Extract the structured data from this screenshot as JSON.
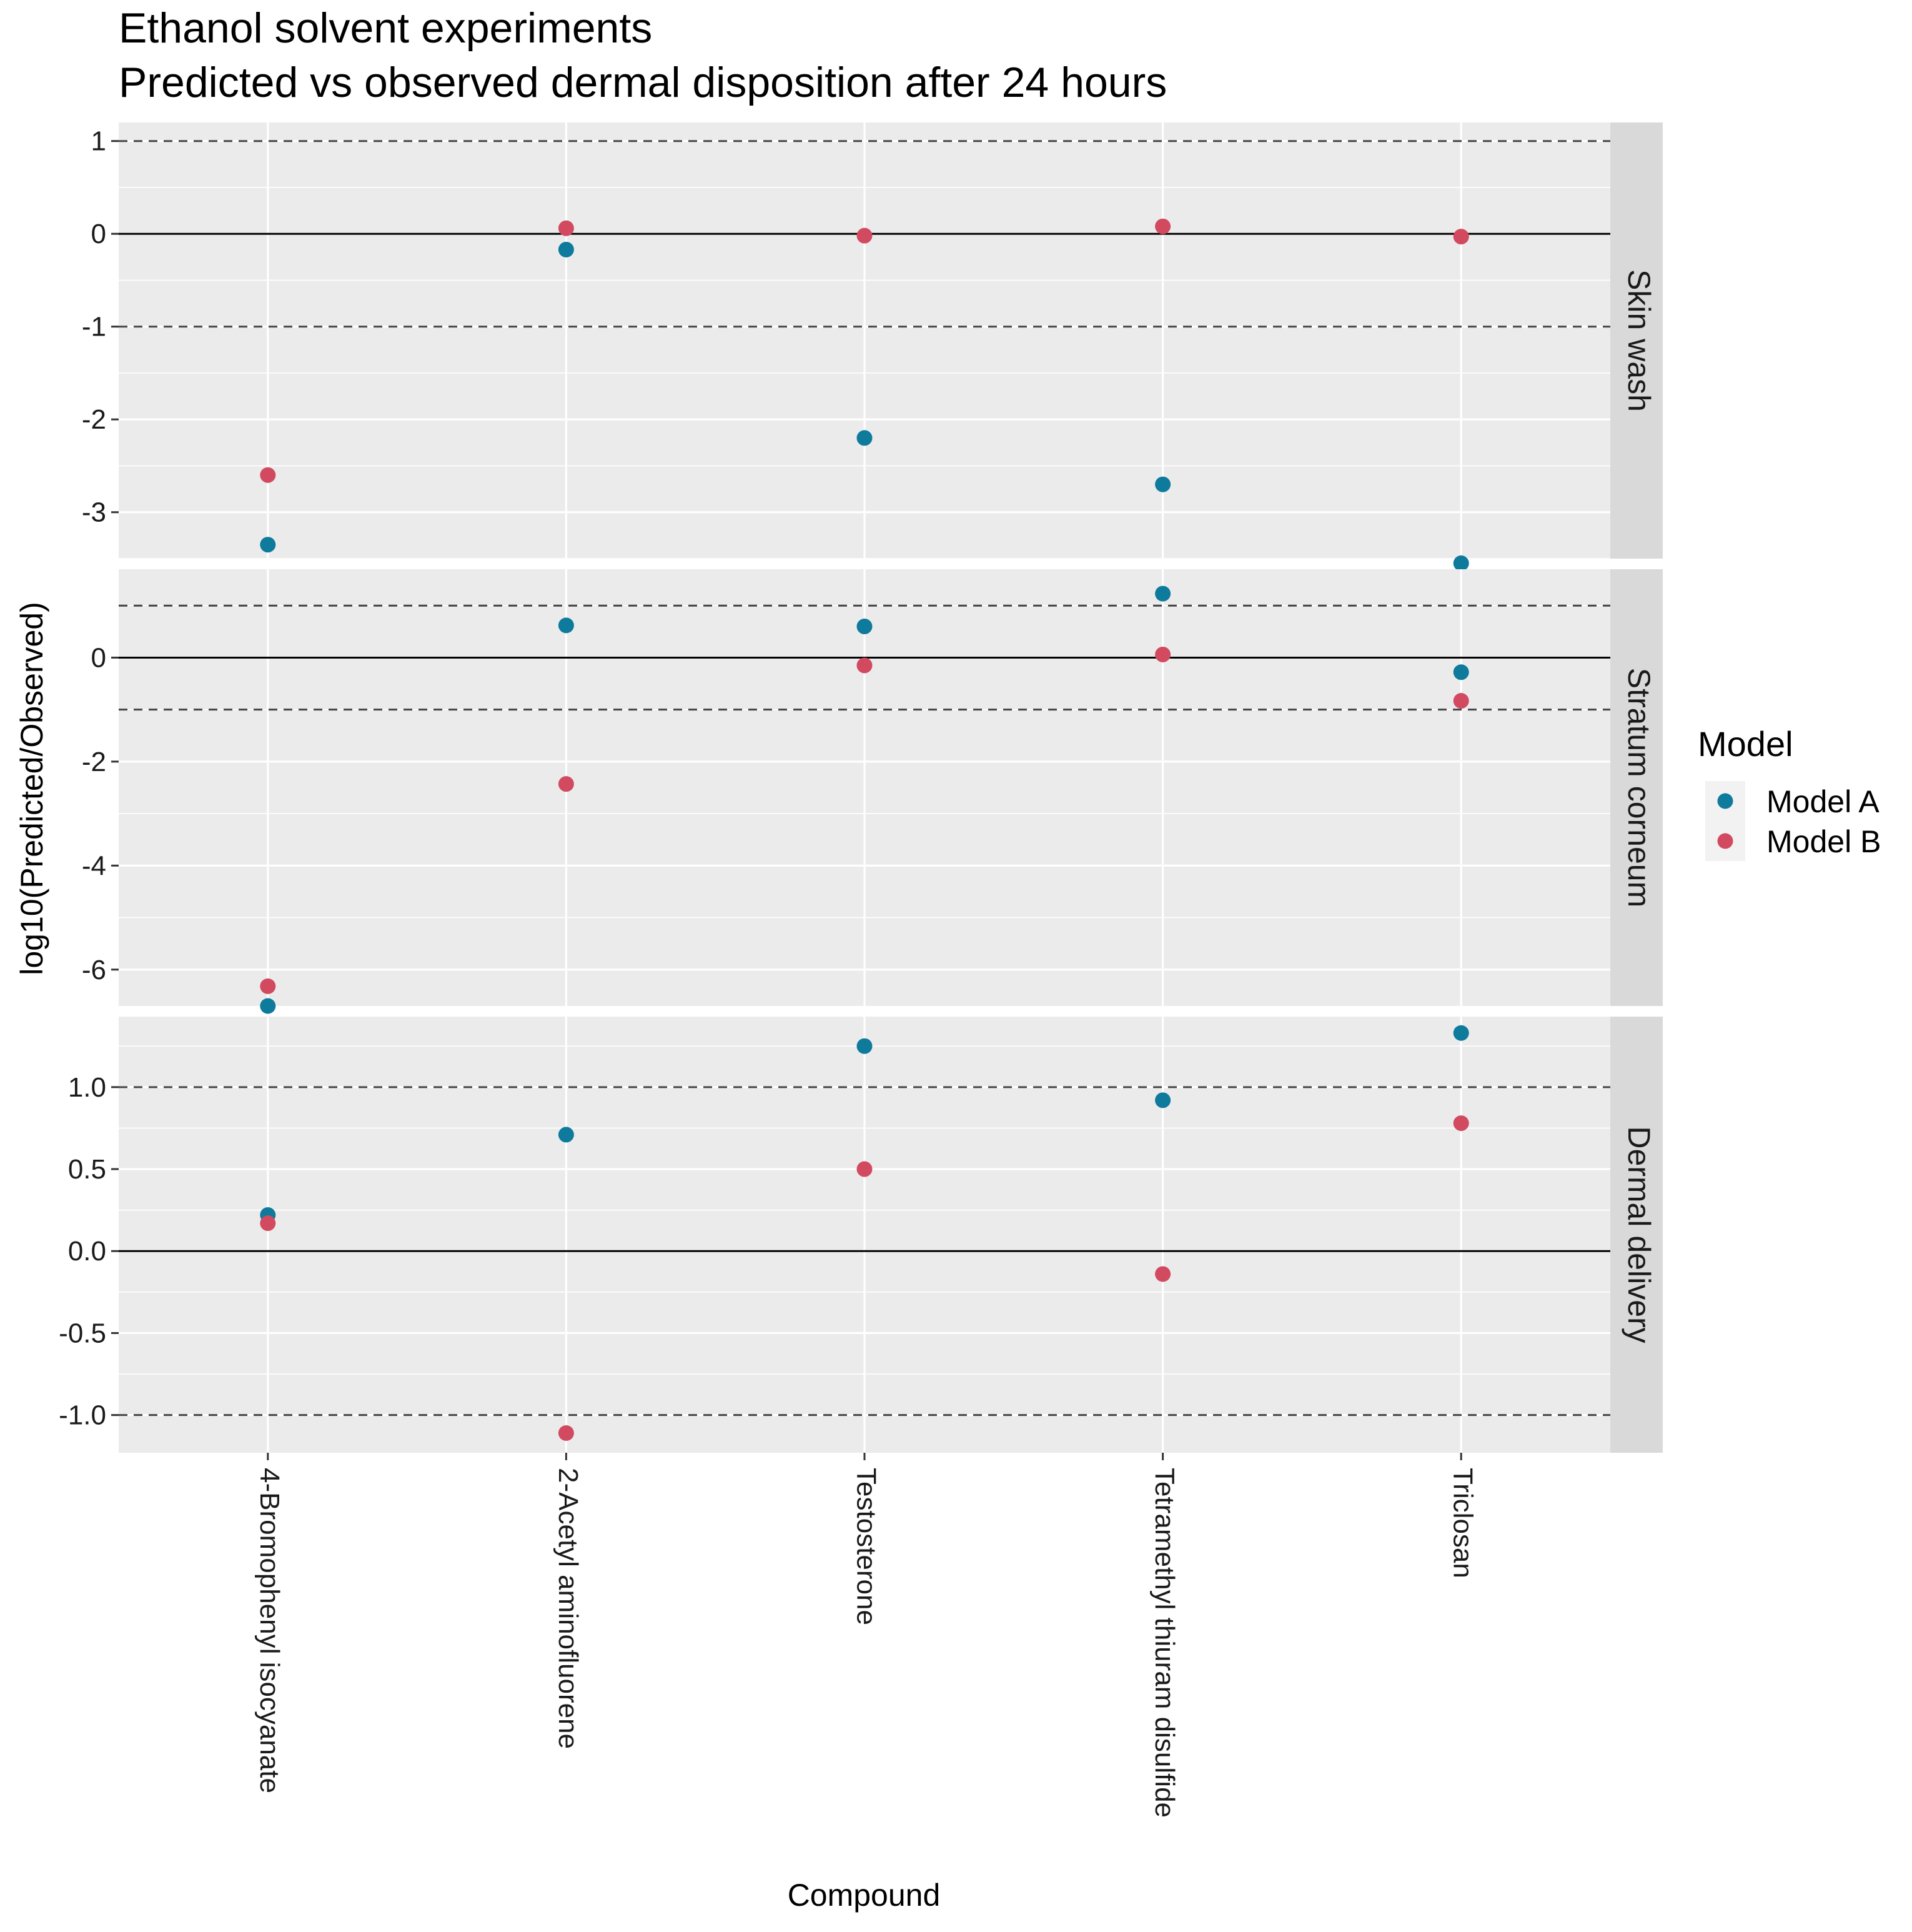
{
  "chart_data": {
    "type": "scatter",
    "title": "Ethanol solvent experiments",
    "subtitle": "Predicted vs observed dermal disposition after 24 hours",
    "xlabel": "Compound",
    "ylabel": "log10(Predicted/Observed)",
    "categories": [
      "4-Bromophenyl isocyanate",
      "2-Acetyl aminofluorene",
      "Testosterone",
      "Tetramethyl thiuram disulfide",
      "Triclosan"
    ],
    "legend": {
      "title": "Model",
      "position": "right",
      "items": [
        {
          "name": "Model A",
          "color": "#0e7a9c"
        },
        {
          "name": "Model B",
          "color": "#d24a5f"
        }
      ]
    },
    "reference_lines": {
      "solid": 0,
      "dashed": [
        -1,
        1
      ]
    },
    "grid": true,
    "panels": [
      {
        "strip": "Skin wash",
        "ylim": [
          -3.5,
          1.2
        ],
        "yticks": [
          1,
          0,
          -1,
          -2,
          -3
        ],
        "ytick_labels": [
          "1",
          "0",
          "-1",
          "-2",
          "-3"
        ],
        "series": [
          {
            "name": "Model A",
            "values": [
              -3.35,
              -0.17,
              -2.2,
              -2.7,
              -3.55
            ]
          },
          {
            "name": "Model B",
            "values": [
              -2.6,
              0.06,
              -0.02,
              0.08,
              -0.03
            ]
          }
        ]
      },
      {
        "strip": "Stratum corneum",
        "ylim": [
          -6.7,
          1.7
        ],
        "yticks": [
          0,
          -2,
          -4,
          -6
        ],
        "ytick_labels": [
          "0",
          "-2",
          "-4",
          "-6"
        ],
        "series": [
          {
            "name": "Model A",
            "values": [
              -6.7,
              0.62,
              0.6,
              1.23,
              -0.28
            ]
          },
          {
            "name": "Model B",
            "values": [
              -6.32,
              -2.43,
              -0.15,
              0.06,
              -0.83
            ]
          }
        ]
      },
      {
        "strip": "Dermal delivery",
        "ylim": [
          -1.23,
          1.43
        ],
        "yticks": [
          1.0,
          0.5,
          0.0,
          -0.5,
          -1.0
        ],
        "ytick_labels": [
          "1.0",
          "0.5",
          "0.0",
          "-0.5",
          "-1.0"
        ],
        "series": [
          {
            "name": "Model A",
            "values": [
              0.22,
              0.71,
              1.25,
              0.92,
              1.33
            ]
          },
          {
            "name": "Model B",
            "values": [
              0.17,
              -1.11,
              0.5,
              -0.14,
              0.78
            ]
          }
        ]
      }
    ]
  }
}
